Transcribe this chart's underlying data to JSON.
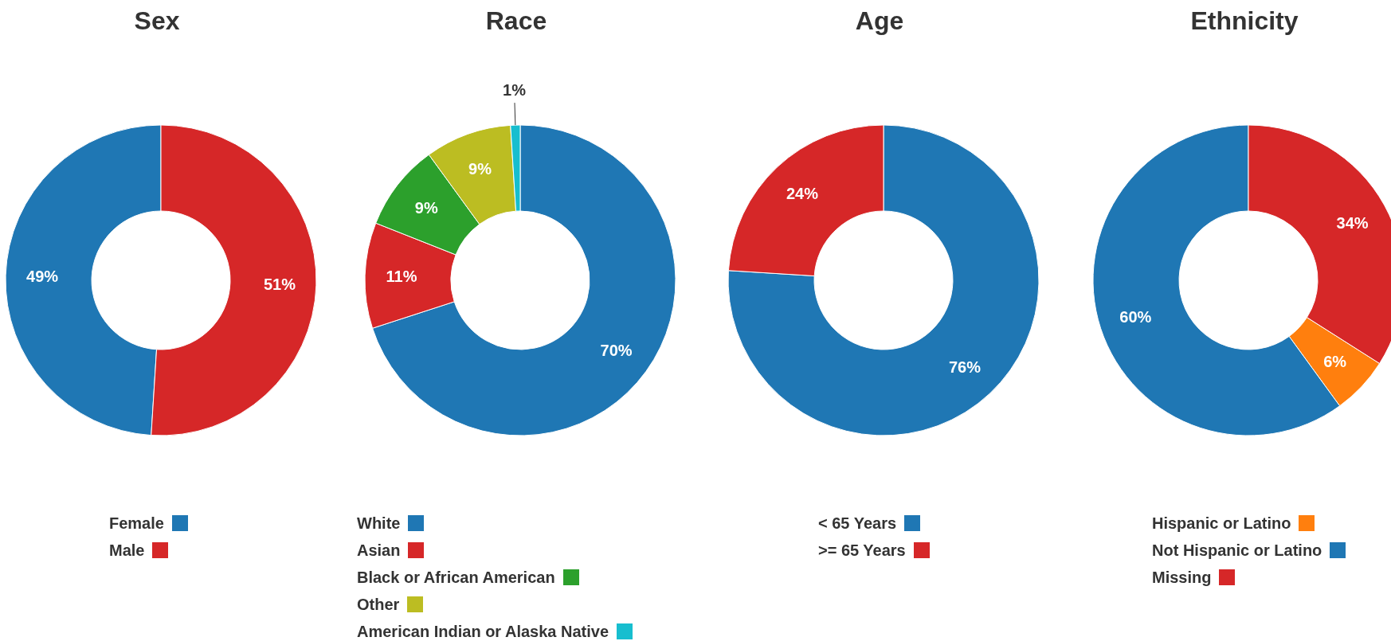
{
  "chart_data": [
    {
      "type": "donut",
      "title": "Sex",
      "categories": [
        "Female",
        "Male"
      ],
      "values": [
        49,
        51
      ],
      "colors": [
        "#1f77b4",
        "#d62728"
      ],
      "value_labels": [
        "49%",
        "51%"
      ],
      "legend": "bottom"
    },
    {
      "type": "donut",
      "title": "Race",
      "categories": [
        "White",
        "Asian",
        "Black or African American",
        "Other",
        "American Indian or Alaska Native"
      ],
      "values": [
        70,
        11,
        9,
        9,
        1
      ],
      "colors": [
        "#1f77b4",
        "#d62728",
        "#2ca02c",
        "#bcbd22",
        "#17becf"
      ],
      "value_labels": [
        "70%",
        "11%",
        "9%",
        "9%",
        "1%"
      ],
      "legend": "bottom"
    },
    {
      "type": "donut",
      "title": "Age",
      "categories": [
        "< 65 Years",
        ">= 65 Years"
      ],
      "values": [
        76,
        24
      ],
      "colors": [
        "#1f77b4",
        "#d62728"
      ],
      "value_labels": [
        "76%",
        "24%"
      ],
      "legend": "bottom"
    },
    {
      "type": "donut",
      "title": "Ethnicity",
      "categories": [
        "Hispanic or Latino",
        "Not Hispanic or Latino",
        "Missing"
      ],
      "values": [
        6,
        60,
        34
      ],
      "colors": [
        "#ff7f0e",
        "#1f77b4",
        "#d62728"
      ],
      "value_labels": [
        "6%",
        "60%",
        "34%"
      ],
      "legend": "bottom"
    }
  ]
}
